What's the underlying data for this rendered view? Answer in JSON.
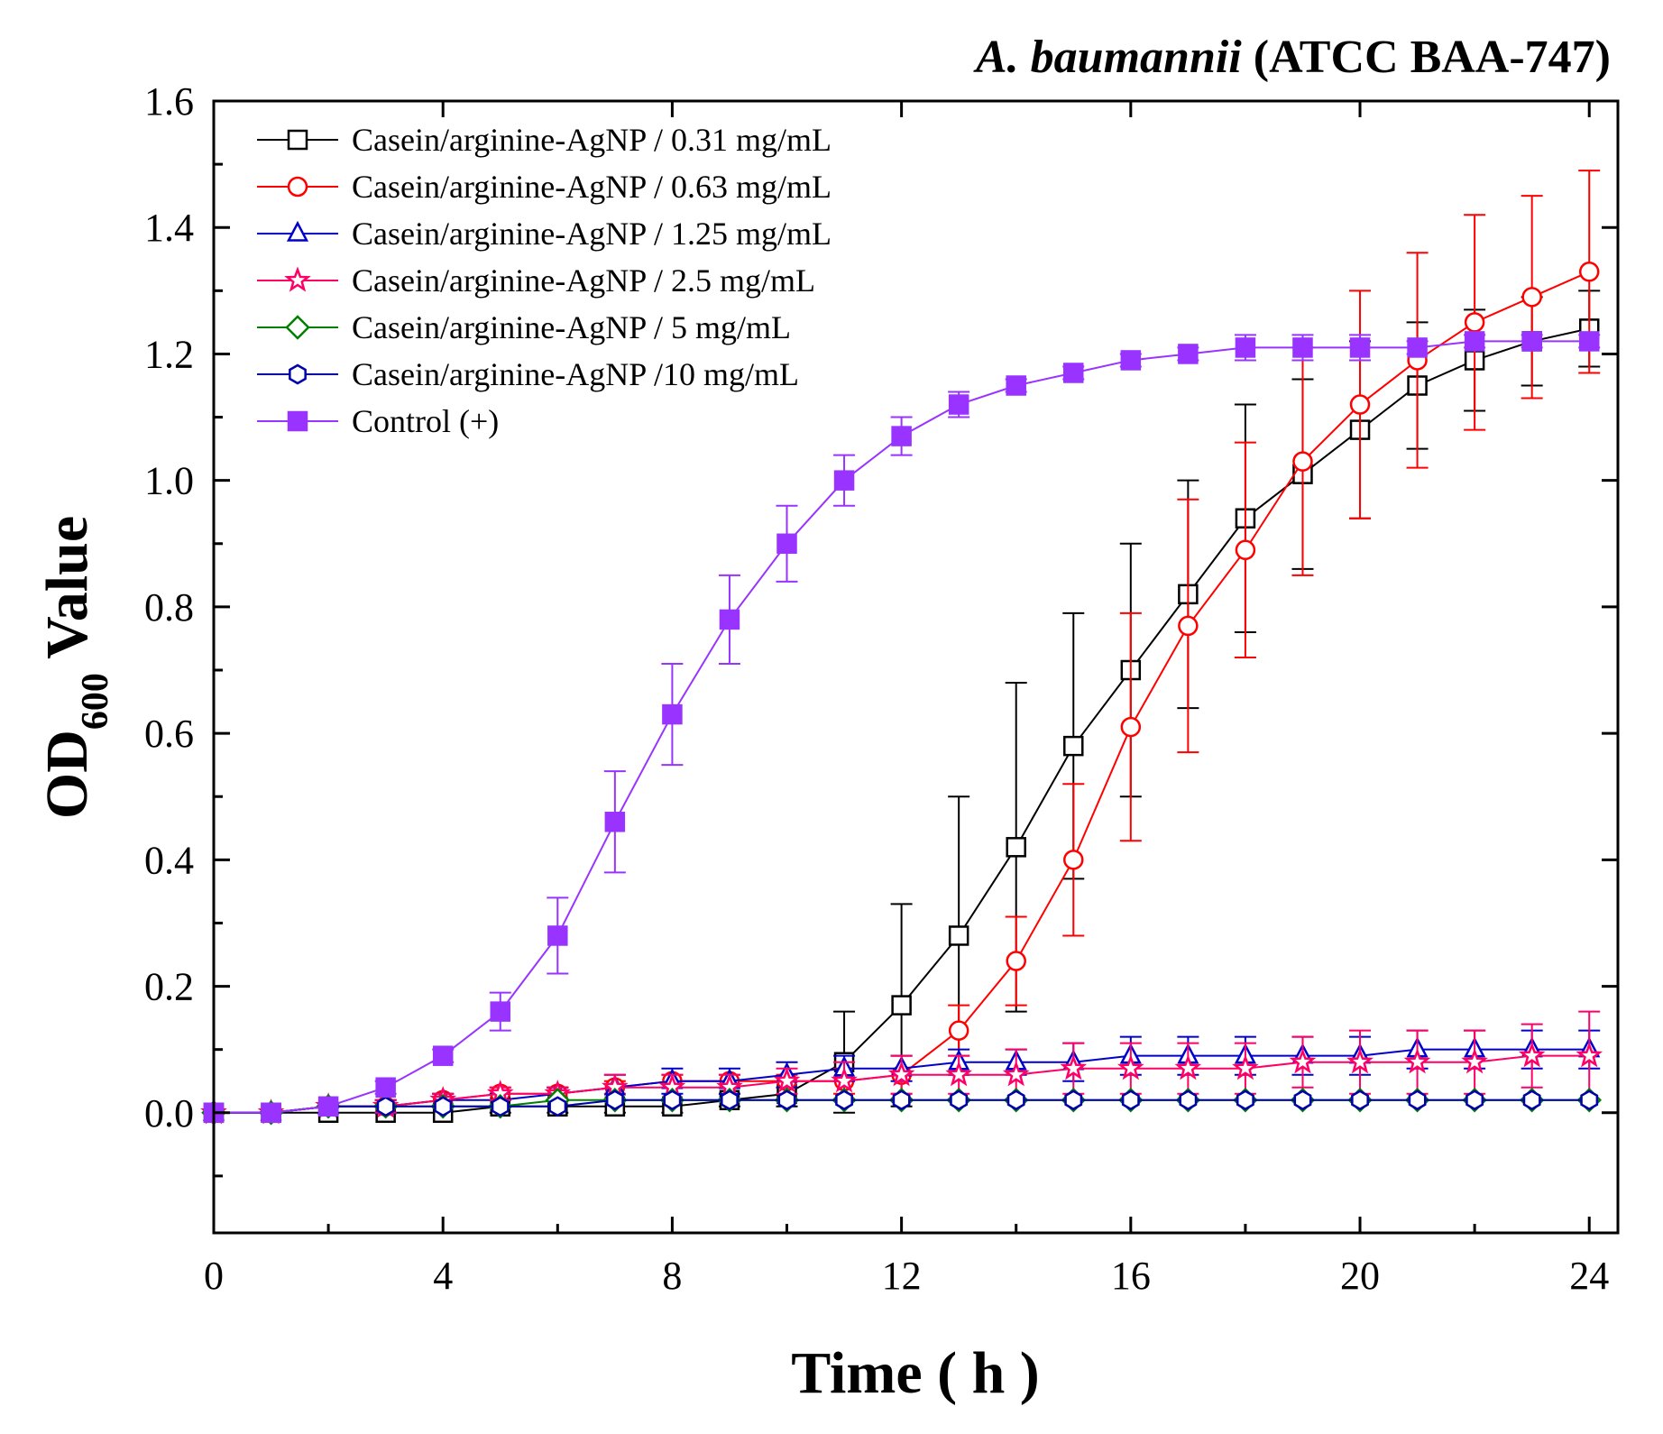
{
  "chart_data": {
    "type": "line",
    "title": {
      "species": "A. baumannii",
      "strain": " (ATCC BAA-747)"
    },
    "xlabel": "Time ( h )",
    "ylabel": {
      "main": "OD",
      "subscript": "600",
      "suffix": " Value"
    },
    "xlim": [
      0,
      24.5
    ],
    "ylim": [
      -0.19,
      1.6
    ],
    "x_ticks": [
      "0",
      "4",
      "8",
      "12",
      "16",
      "20",
      "24"
    ],
    "y_ticks": [
      "0.0",
      "0.2",
      "0.4",
      "0.6",
      "0.8",
      "1.0",
      "1.2",
      "1.4",
      "1.6"
    ],
    "x": [
      0,
      1,
      2,
      3,
      4,
      5,
      6,
      7,
      8,
      9,
      10,
      11,
      12,
      13,
      14,
      15,
      16,
      17,
      18,
      19,
      20,
      21,
      22,
      23,
      24
    ],
    "series": [
      {
        "name": "Casein/arginine-AgNP /  0.31 mg/mL",
        "color": "#000000",
        "marker": "square",
        "filled": false,
        "values": [
          0.0,
          0.0,
          0.0,
          0.0,
          0.0,
          0.01,
          0.01,
          0.01,
          0.01,
          0.02,
          0.03,
          0.08,
          0.17,
          0.28,
          0.42,
          0.58,
          0.7,
          0.82,
          0.94,
          1.01,
          1.08,
          1.15,
          1.19,
          1.22,
          1.24
        ],
        "errors": [
          0.0,
          0.0,
          0.0,
          0.0,
          0.0,
          0.01,
          0.01,
          0.01,
          0.01,
          0.01,
          0.02,
          0.08,
          0.16,
          0.22,
          0.26,
          0.21,
          0.2,
          0.18,
          0.18,
          0.15,
          0.14,
          0.1,
          0.08,
          0.07,
          0.06
        ]
      },
      {
        "name": "Casein/arginine-AgNP /  0.63 mg/mL",
        "color": "#ff0000",
        "marker": "circle",
        "filled": false,
        "values": [
          0.0,
          0.0,
          0.01,
          0.01,
          0.02,
          0.03,
          0.03,
          0.04,
          0.05,
          0.05,
          0.05,
          0.05,
          0.06,
          0.13,
          0.24,
          0.4,
          0.61,
          0.77,
          0.89,
          1.03,
          1.12,
          1.19,
          1.25,
          1.29,
          1.33
        ],
        "errors": [
          0.0,
          0.0,
          0.0,
          0.01,
          0.01,
          0.01,
          0.01,
          0.01,
          0.01,
          0.01,
          0.01,
          0.02,
          0.03,
          0.04,
          0.07,
          0.12,
          0.18,
          0.2,
          0.17,
          0.18,
          0.18,
          0.17,
          0.17,
          0.16,
          0.16
        ]
      },
      {
        "name": "Casein/arginine-AgNP /  1.25 mg/mL",
        "color": "#0000cc",
        "marker": "triangle",
        "filled": false,
        "values": [
          0.0,
          0.0,
          0.01,
          0.01,
          0.02,
          0.02,
          0.03,
          0.04,
          0.05,
          0.05,
          0.06,
          0.07,
          0.07,
          0.08,
          0.08,
          0.08,
          0.09,
          0.09,
          0.09,
          0.09,
          0.09,
          0.1,
          0.1,
          0.1,
          0.1
        ],
        "errors": [
          0.0,
          0.0,
          0.0,
          0.01,
          0.01,
          0.01,
          0.01,
          0.02,
          0.02,
          0.02,
          0.02,
          0.02,
          0.02,
          0.02,
          0.02,
          0.03,
          0.03,
          0.03,
          0.03,
          0.03,
          0.03,
          0.03,
          0.03,
          0.03,
          0.03
        ]
      },
      {
        "name": "Casein/arginine-AgNP /  2.5 mg/mL",
        "color": "#ff0066",
        "marker": "star",
        "filled": false,
        "values": [
          0.0,
          0.0,
          0.01,
          0.01,
          0.02,
          0.03,
          0.03,
          0.04,
          0.04,
          0.04,
          0.05,
          0.05,
          0.06,
          0.06,
          0.06,
          0.07,
          0.07,
          0.07,
          0.07,
          0.08,
          0.08,
          0.08,
          0.08,
          0.09,
          0.09
        ],
        "errors": [
          0.0,
          0.0,
          0.0,
          0.01,
          0.01,
          0.01,
          0.01,
          0.02,
          0.02,
          0.02,
          0.02,
          0.03,
          0.03,
          0.03,
          0.04,
          0.04,
          0.04,
          0.04,
          0.04,
          0.04,
          0.05,
          0.05,
          0.05,
          0.05,
          0.07
        ]
      },
      {
        "name": "Casein/arginine-AgNP /  5 mg/mL",
        "color": "#008000",
        "marker": "diamond",
        "filled": false,
        "values": [
          0.0,
          0.0,
          0.01,
          0.01,
          0.01,
          0.01,
          0.02,
          0.02,
          0.02,
          0.02,
          0.02,
          0.02,
          0.02,
          0.02,
          0.02,
          0.02,
          0.02,
          0.02,
          0.02,
          0.02,
          0.02,
          0.02,
          0.02,
          0.02,
          0.02
        ],
        "errors": [
          0.0,
          0.0,
          0.0,
          0.0,
          0.0,
          0.0,
          0.0,
          0.0,
          0.0,
          0.0,
          0.0,
          0.0,
          0.0,
          0.0,
          0.0,
          0.0,
          0.0,
          0.0,
          0.0,
          0.0,
          0.0,
          0.0,
          0.0,
          0.0,
          0.0
        ]
      },
      {
        "name": "Casein/arginine-AgNP /10 mg/mL",
        "color": "#0000aa",
        "marker": "hexagon",
        "filled": false,
        "values": [
          0.0,
          0.0,
          0.01,
          0.01,
          0.01,
          0.01,
          0.01,
          0.02,
          0.02,
          0.02,
          0.02,
          0.02,
          0.02,
          0.02,
          0.02,
          0.02,
          0.02,
          0.02,
          0.02,
          0.02,
          0.02,
          0.02,
          0.02,
          0.02,
          0.02
        ],
        "errors": [
          0.0,
          0.0,
          0.0,
          0.0,
          0.0,
          0.0,
          0.0,
          0.0,
          0.0,
          0.0,
          0.0,
          0.0,
          0.0,
          0.0,
          0.0,
          0.0,
          0.0,
          0.0,
          0.0,
          0.0,
          0.0,
          0.0,
          0.0,
          0.0,
          0.0
        ]
      },
      {
        "name": "Control (+)",
        "color": "#9933ff",
        "marker": "square",
        "filled": true,
        "values": [
          0.0,
          0.0,
          0.01,
          0.04,
          0.09,
          0.16,
          0.28,
          0.46,
          0.63,
          0.78,
          0.9,
          1.0,
          1.07,
          1.12,
          1.15,
          1.17,
          1.19,
          1.2,
          1.21,
          1.21,
          1.21,
          1.21,
          1.22,
          1.22,
          1.22
        ],
        "errors": [
          0.0,
          0.0,
          0.0,
          0.01,
          0.01,
          0.03,
          0.06,
          0.08,
          0.08,
          0.07,
          0.06,
          0.04,
          0.03,
          0.02,
          0.01,
          0.01,
          0.01,
          0.01,
          0.02,
          0.02,
          0.02,
          0.01,
          0.01,
          0.01,
          0.01
        ]
      }
    ],
    "legend_position": "top-left",
    "grid": false
  }
}
